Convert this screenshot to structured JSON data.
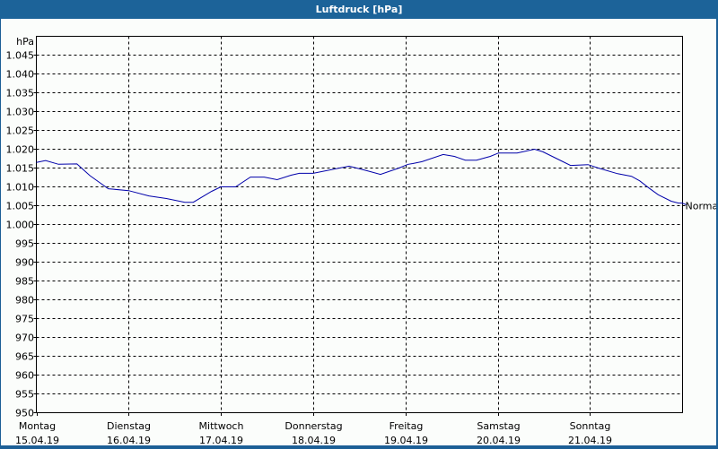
{
  "window": {
    "title": "Luftdruck [hPa]"
  },
  "colors": {
    "titlebar": "#1c6399",
    "series": "#0000aa",
    "background": "#fbfdfb"
  },
  "chart_data": {
    "type": "line",
    "title": "Luftdruck [hPa]",
    "ylabel": "hPa",
    "xlabel": "",
    "ylim": [
      950,
      1050
    ],
    "grid": true,
    "y_ticks": [
      "1.045",
      "1.040",
      "1.035",
      "1.030",
      "1.025",
      "1.020",
      "1.015",
      "1.010",
      "1.005",
      "1.000",
      "995",
      "990",
      "985",
      "980",
      "975",
      "970",
      "965",
      "960",
      "955",
      "950"
    ],
    "y_tick_values": [
      1045,
      1040,
      1035,
      1030,
      1025,
      1020,
      1015,
      1010,
      1005,
      1000,
      995,
      990,
      985,
      980,
      975,
      970,
      965,
      960,
      955,
      950
    ],
    "x_ticks": [
      {
        "day": "Montag",
        "date": "15.04.19"
      },
      {
        "day": "Dienstag",
        "date": "16.04.19"
      },
      {
        "day": "Mittwoch",
        "date": "17.04.19"
      },
      {
        "day": "Donnerstag",
        "date": "18.04.19"
      },
      {
        "day": "Freitag",
        "date": "19.04.19"
      },
      {
        "day": "Samstag",
        "date": "20.04.19"
      },
      {
        "day": "Sonntag",
        "date": "21.04.19"
      }
    ],
    "annotations": [
      {
        "label": "Normal",
        "value": 1005
      }
    ],
    "series": [
      {
        "name": "Luftdruck",
        "x_days": [
          0,
          0.1,
          0.24,
          0.44,
          0.58,
          0.78,
          1.0,
          1.22,
          1.41,
          1.61,
          1.7,
          1.9,
          2.0,
          2.16,
          2.32,
          2.47,
          2.61,
          2.76,
          2.85,
          3.0,
          3.39,
          3.58,
          3.73,
          3.93,
          4.03,
          4.08,
          4.18,
          4.41,
          4.53,
          4.65,
          4.77,
          4.92,
          5.01,
          5.21,
          5.4,
          5.49,
          5.69,
          5.79,
          5.98,
          6.09,
          6.3,
          6.45,
          6.54,
          6.64,
          6.74,
          6.88,
          6.96,
          7.0,
          7.05
        ],
        "values": [
          1016.5,
          1017.0,
          1016.0,
          1016.1,
          1013.0,
          1009.5,
          1009.0,
          1007.6,
          1006.9,
          1005.9,
          1005.9,
          1008.8,
          1010.0,
          1010.0,
          1012.6,
          1012.6,
          1011.9,
          1013.1,
          1013.6,
          1013.6,
          1015.5,
          1014.3,
          1013.3,
          1015.0,
          1016.0,
          1016.2,
          1016.7,
          1018.6,
          1018.1,
          1017.1,
          1017.1,
          1018.1,
          1019.0,
          1019.0,
          1020.0,
          1019.3,
          1016.9,
          1015.7,
          1015.9,
          1015.0,
          1013.5,
          1012.8,
          1011.6,
          1009.7,
          1007.9,
          1006.2,
          1005.7,
          1005.7,
          1005.2
        ]
      }
    ]
  }
}
